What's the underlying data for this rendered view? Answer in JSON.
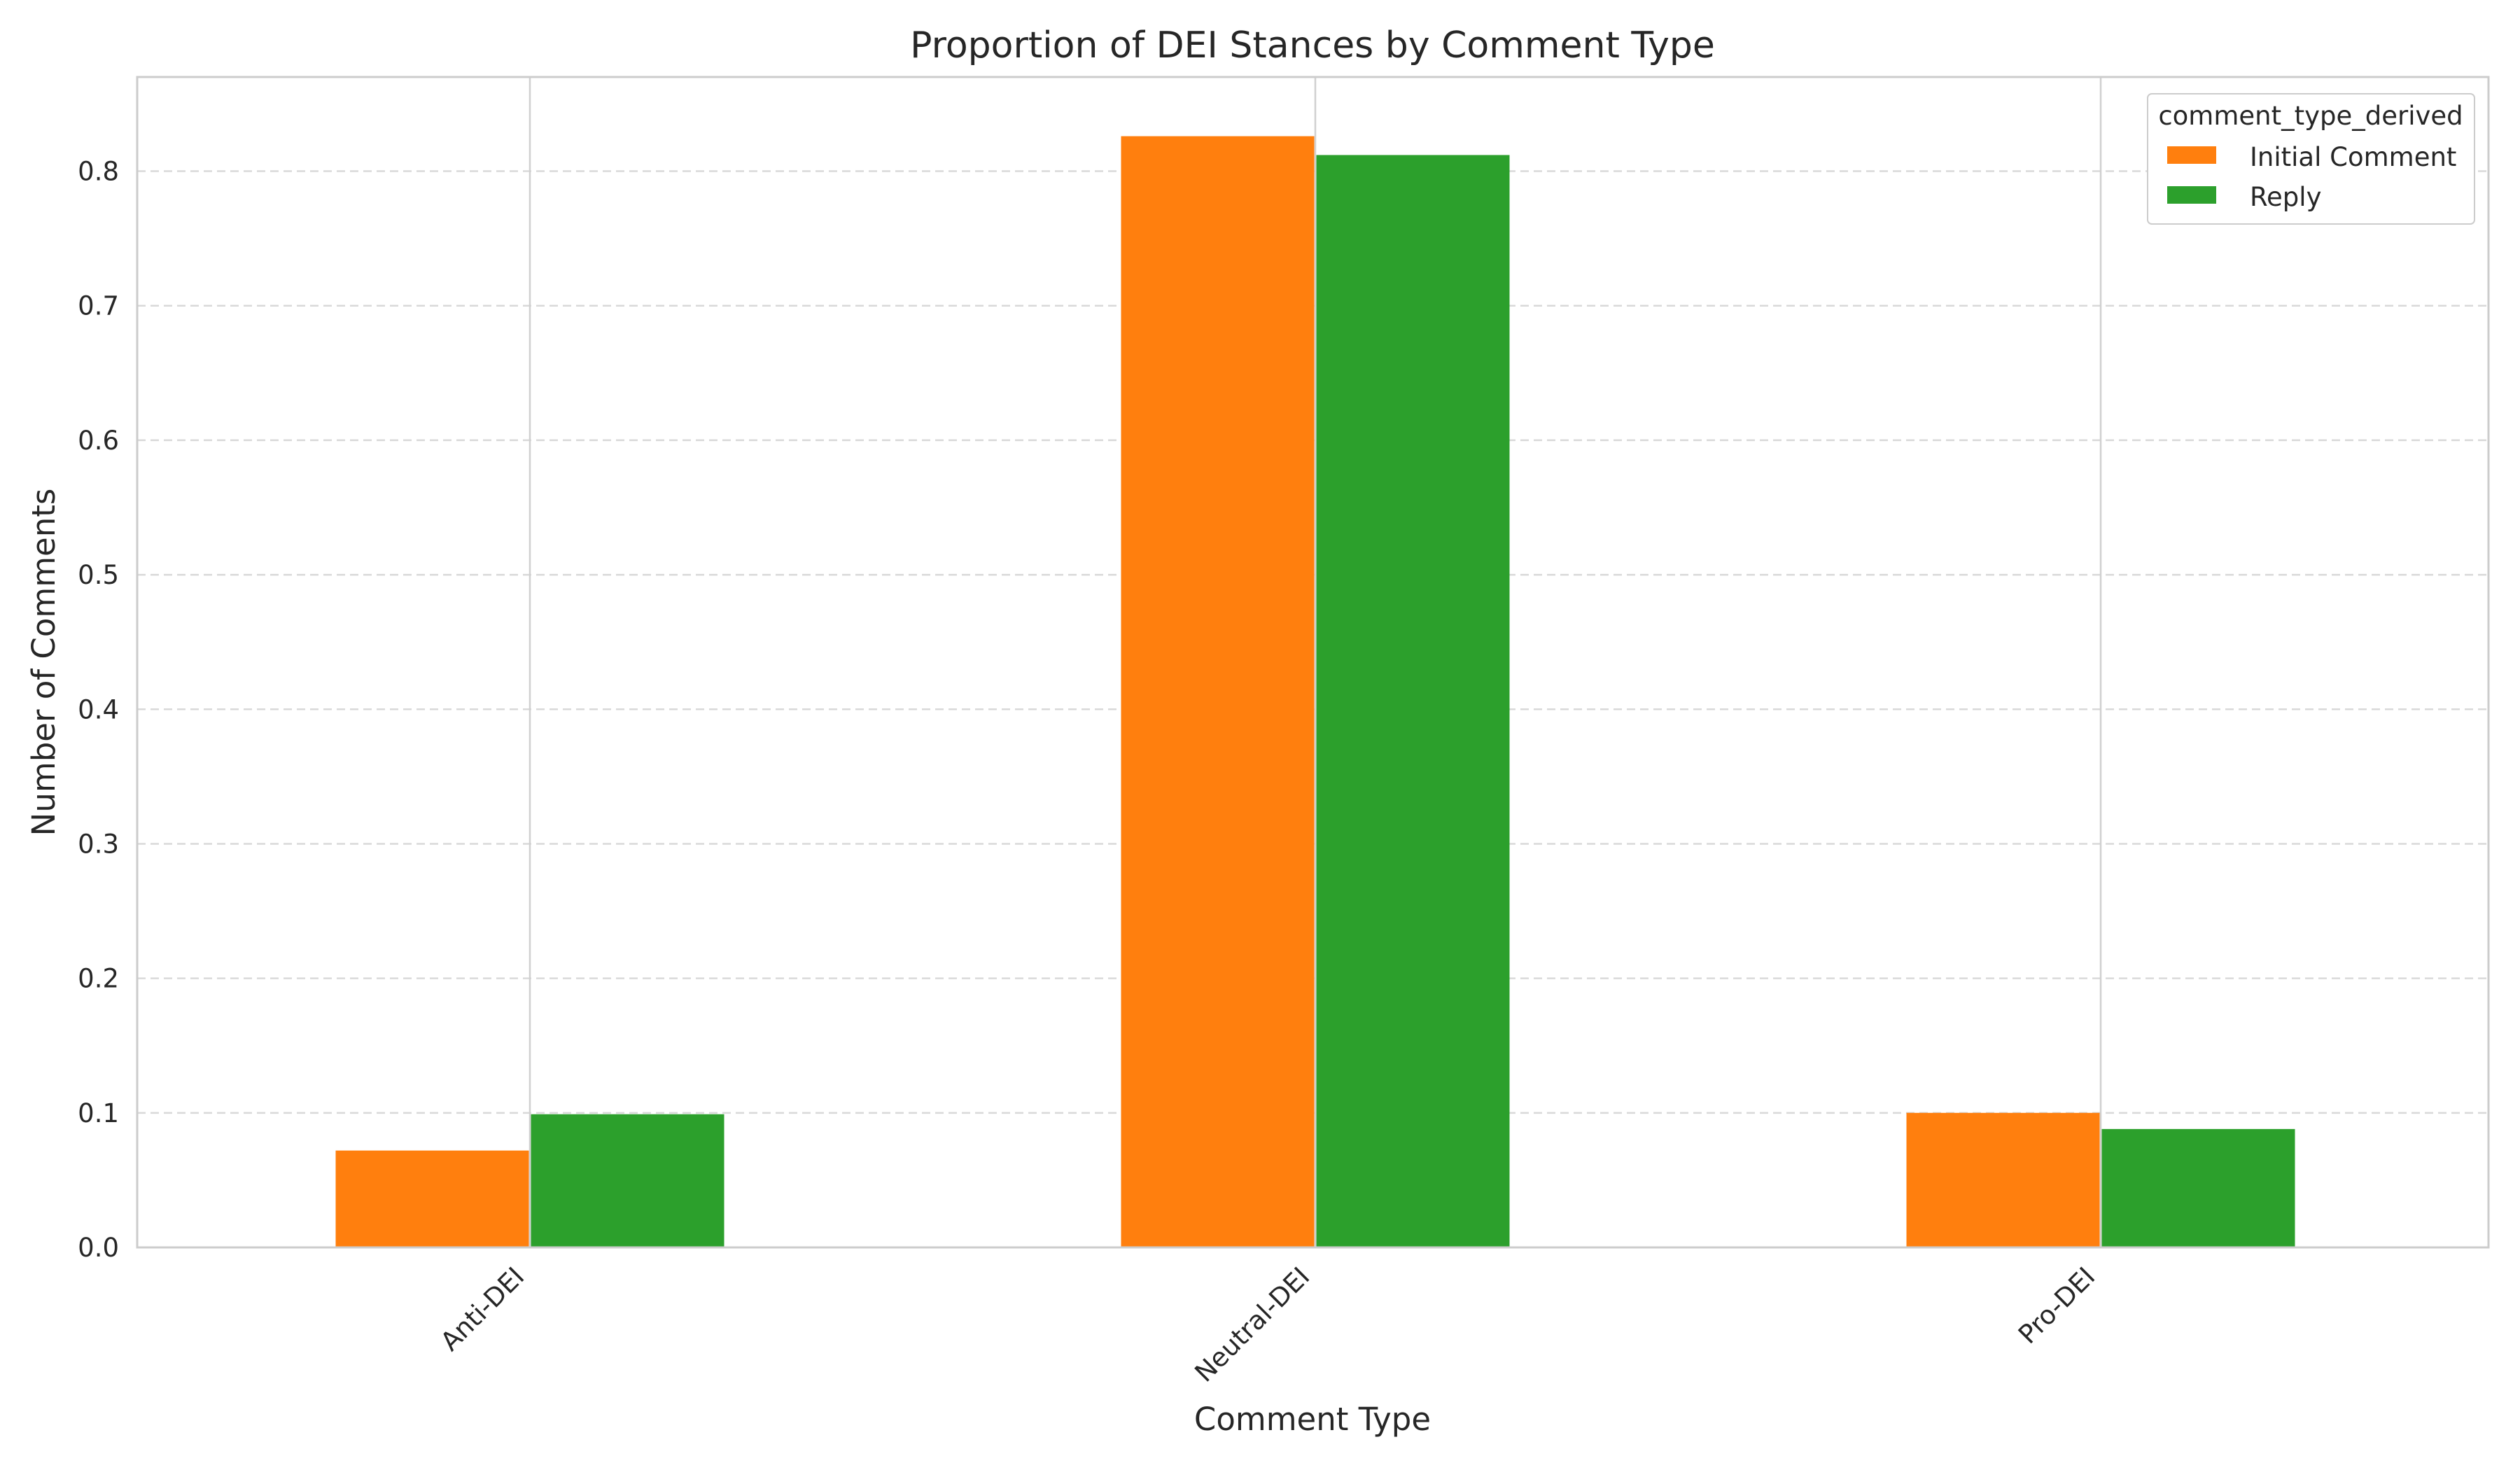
{
  "chart_data": {
    "type": "bar",
    "title": "Proportion of DEI Stances by Comment Type",
    "xlabel": "Comment Type",
    "ylabel": "Number of Comments",
    "categories": [
      "Anti-DEI",
      "Neutral-DEI",
      "Pro-DEI"
    ],
    "series": [
      {
        "name": "Initial Comment",
        "color": "#ff7f0e",
        "values": [
          0.072,
          0.826,
          0.1
        ]
      },
      {
        "name": "Reply",
        "color": "#2ca02c",
        "values": [
          0.099,
          0.812,
          0.088
        ]
      }
    ],
    "ylim": [
      0,
      0.87
    ],
    "yticks": [
      "0.0",
      "0.1",
      "0.2",
      "0.3",
      "0.4",
      "0.5",
      "0.6",
      "0.7",
      "0.8"
    ],
    "ytick_values": [
      0,
      0.1,
      0.2,
      0.3,
      0.4,
      0.5,
      0.6,
      0.7,
      0.8
    ],
    "grid": true,
    "legend": {
      "title": "comment_type_derived",
      "placement": "top-right"
    }
  }
}
